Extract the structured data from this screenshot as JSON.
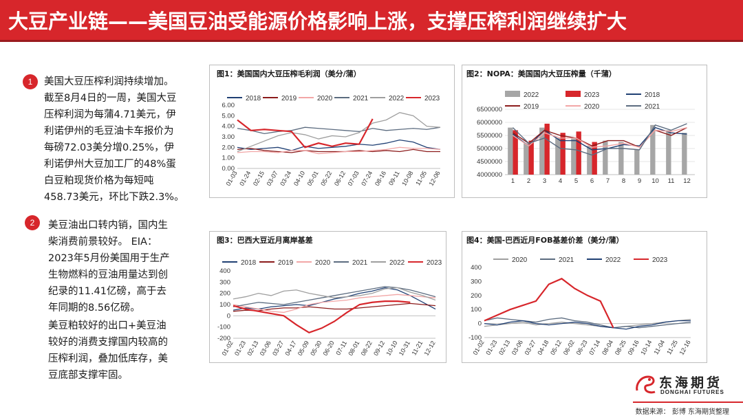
{
  "header": {
    "title": "大豆产业链——美国豆油受能源价格影响上涨，支撑压榨利润继续扩大"
  },
  "points": [
    {
      "number": "1",
      "lines": [
        "美国大豆压榨利润持续增加。",
        "截至8月4日的一周，美国大豆",
        "压榨利润为每蒲4.71美元，伊",
        "利诺伊州的毛豆油卡车报价为",
        "每磅72.03美分增0.25%，伊",
        "利诺伊州大豆加工厂的48%蛋",
        "白豆粕现货价格为每短吨",
        "458.73美元，环比下跌2.3%。"
      ]
    },
    {
      "number": "2",
      "lines": [
        "美豆油出口转内销，国内生",
        "柴消费前景较好。 EIA：",
        "2023年5月份美国用于生产",
        "生物燃料的豆油用量达到创",
        "纪录的11.41亿磅，高于去",
        "年同期的8.56亿磅。"
      ]
    },
    {
      "number": "",
      "lines": [
        "美豆粕较好的出口+美豆油",
        "较好的消费支撑国内较高的",
        "压榨利润，叠加低库存，美",
        "豆底部支撑牢固。"
      ]
    }
  ],
  "logo": {
    "cn": "东海期货",
    "en": "DONGHAI FUTURES"
  },
  "footer": {
    "source": "数据来源： 彭博 东海期货整理"
  },
  "chart_data": [
    {
      "type": "line",
      "title": "图1：美国国内大豆压榨毛利润（美分/蒲）",
      "x": [
        "01-03",
        "01-24",
        "02-15",
        "03-07",
        "03-24",
        "04-10",
        "05-01",
        "05-22",
        "06-12",
        "07-03",
        "07-24",
        "08-16",
        "09-11",
        "10-08",
        "11-05",
        "12-06"
      ],
      "ylim": [
        0,
        6
      ],
      "yticks": [
        "0.00",
        "1.00",
        "2.00",
        "3.00",
        "4.00",
        "5.00",
        "6.00"
      ],
      "legend_position": "top",
      "series": [
        {
          "name": "2018",
          "color": "#1f3f73",
          "values": [
            2.0,
            1.8,
            1.9,
            2.0,
            1.7,
            2.1,
            1.9,
            2.0,
            2.1,
            2.3,
            2.2,
            2.4,
            2.7,
            2.5,
            2.0,
            1.8
          ]
        },
        {
          "name": "2019",
          "color": "#8b1a1a",
          "values": [
            1.8,
            1.9,
            1.7,
            1.6,
            1.5,
            1.7,
            1.6,
            1.6,
            1.6,
            1.7,
            1.6,
            1.7,
            1.6,
            1.8,
            1.6,
            1.6
          ]
        },
        {
          "name": "2020",
          "color": "#f2a6a6",
          "values": [
            1.5,
            1.6,
            1.6,
            1.5,
            1.7,
            1.7,
            1.4,
            1.5,
            1.6,
            1.6,
            1.7,
            1.8,
            2.0,
            1.9,
            1.9,
            1.8
          ]
        },
        {
          "name": "2021",
          "color": "#5b6b7f",
          "values": [
            3.8,
            3.6,
            3.3,
            3.5,
            3.6,
            3.9,
            3.8,
            3.7,
            3.6,
            3.5,
            3.8,
            3.6,
            3.7,
            3.8,
            3.7,
            3.9
          ]
        },
        {
          "name": "2022",
          "color": "#9e9e9e",
          "values": [
            1.6,
            2.1,
            2.6,
            3.1,
            3.4,
            3.2,
            2.8,
            3.1,
            3.0,
            3.4,
            4.3,
            4.6,
            5.3,
            5.0,
            4.0,
            3.9
          ]
        },
        {
          "name": "2023",
          "color": "#d7262b",
          "values": [
            4.6,
            3.6,
            3.7,
            3.6,
            3.5,
            2.0,
            2.4,
            2.1,
            2.4,
            2.3,
            4.7,
            null,
            null,
            null,
            null,
            null
          ]
        }
      ]
    },
    {
      "type": "bar",
      "title": "图2：NOPA：美国国内大豆压榨量（千蒲）",
      "categories": [
        "1",
        "2",
        "3",
        "4",
        "5",
        "6",
        "7",
        "8",
        "9",
        "10",
        "11",
        "12"
      ],
      "ylim": [
        4000000,
        6500000
      ],
      "yticks": [
        "4000000",
        "4500000",
        "5000000",
        "5500000",
        "6000000",
        "6500000"
      ],
      "legend_position": "top",
      "series": [
        {
          "name": "2022",
          "type": "bar",
          "color": "#a6a6a6",
          "values": [
            5800000,
            5200000,
            5800000,
            5400000,
            5400000,
            5100000,
            5300000,
            5250000,
            4950000,
            5900000,
            5700000,
            5600000
          ]
        },
        {
          "name": "2023",
          "type": "bar",
          "color": "#d7262b",
          "values": [
            5700000,
            5300000,
            5950000,
            5600000,
            5650000,
            5250000,
            null,
            null,
            null,
            null,
            null,
            null
          ]
        },
        {
          "name": "2018",
          "type": "line",
          "color": "#1f3f73",
          "values": [
            5550000,
            5100000,
            5700000,
            5300000,
            5300000,
            4950000,
            5000000,
            5150000,
            5100000,
            5800000,
            5600000,
            5550000
          ]
        },
        {
          "name": "2019",
          "type": "line",
          "color": "#8b1a1a",
          "values": [
            5600000,
            5200000,
            5700000,
            5500000,
            5400000,
            5100000,
            5300000,
            5300000,
            5050000,
            5700000,
            5500000,
            5800000
          ]
        },
        {
          "name": "2020",
          "type": "line",
          "color": "#f2a6a6",
          "values": [
            5500000,
            5100000,
            5600000,
            5400000,
            5400000,
            5050000,
            5100000,
            5200000,
            5050000,
            5700000,
            5650000,
            5800000
          ]
        },
        {
          "name": "2021",
          "type": "line",
          "color": "#5b6b7f",
          "values": [
            5800000,
            5200000,
            5400000,
            5000000,
            4950000,
            4750000,
            5000000,
            5000000,
            4950000,
            5900000,
            5700000,
            5950000
          ]
        }
      ]
    },
    {
      "type": "line",
      "title": "图3：巴西大豆近月离岸基差",
      "x": [
        "01-02",
        "01-23",
        "02-13",
        "03-06",
        "03-27",
        "04-17",
        "05-09",
        "05-30",
        "06-20",
        "07-11",
        "08-01",
        "08-22",
        "09-12",
        "10-10",
        "10-31",
        "11-21",
        "12-12"
      ],
      "ylim": [
        -200,
        400
      ],
      "yticks": [
        "-200",
        "-100",
        "0",
        "100",
        "200",
        "300",
        "400"
      ],
      "legend_position": "top",
      "series": [
        {
          "name": "2018",
          "color": "#1f3f73",
          "values": [
            50,
            70,
            60,
            80,
            90,
            100,
            90,
            120,
            150,
            170,
            200,
            220,
            250,
            230,
            180,
            120,
            60
          ]
        },
        {
          "name": "2019",
          "color": "#8b1a1a",
          "values": [
            40,
            50,
            45,
            60,
            70,
            70,
            80,
            70,
            60,
            60,
            70,
            80,
            90,
            100,
            110,
            100,
            90
          ]
        },
        {
          "name": "2020",
          "color": "#f2a6a6",
          "values": [
            100,
            80,
            60,
            40,
            30,
            60,
            100,
            120,
            130,
            140,
            160,
            170,
            180,
            190,
            180,
            170,
            160
          ]
        },
        {
          "name": "2021",
          "color": "#5b6b7f",
          "values": [
            80,
            100,
            120,
            110,
            100,
            120,
            140,
            160,
            180,
            200,
            220,
            240,
            260,
            250,
            230,
            200,
            170
          ]
        },
        {
          "name": "2022",
          "color": "#9e9e9e",
          "values": [
            150,
            170,
            200,
            180,
            220,
            230,
            200,
            180,
            160,
            170,
            180,
            200,
            240,
            250,
            210,
            180,
            140
          ]
        },
        {
          "name": "2023",
          "color": "#d7262b",
          "values": [
            90,
            60,
            40,
            20,
            0,
            -80,
            -150,
            -110,
            -50,
            30,
            100,
            120,
            130,
            130,
            120,
            null,
            null
          ]
        }
      ]
    },
    {
      "type": "line",
      "title": "图4：美国-巴西近月FOB基差价差（美分/蒲）",
      "x": [
        "01-02",
        "01-23",
        "02-13",
        "03-06",
        "03-27",
        "04-18",
        "05-12",
        "06-02",
        "06-23",
        "07-14",
        "08-04",
        "08-25",
        "09-16",
        "10-14",
        "11-04",
        "11-25",
        "12-16"
      ],
      "ylim": [
        -100,
        400
      ],
      "yticks": [
        "-100",
        "0",
        "100",
        "200",
        "300",
        "400"
      ],
      "legend_position": "top",
      "series": [
        {
          "name": "2020",
          "color": "#9e9e9e",
          "values": [
            -20,
            -10,
            0,
            10,
            -10,
            0,
            10,
            0,
            -10,
            -20,
            -30,
            -20,
            -10,
            0,
            10,
            20,
            30
          ]
        },
        {
          "name": "2021",
          "color": "#5b6b7f",
          "values": [
            20,
            40,
            30,
            20,
            10,
            30,
            40,
            20,
            10,
            -10,
            -30,
            -20,
            -30,
            -20,
            -10,
            0,
            10
          ]
        },
        {
          "name": "2022",
          "color": "#1f3f73",
          "values": [
            0,
            -10,
            10,
            20,
            0,
            -10,
            0,
            10,
            0,
            -20,
            -30,
            -40,
            -20,
            -10,
            10,
            20,
            20
          ]
        },
        {
          "name": "2023",
          "color": "#d7262b",
          "values": [
            20,
            60,
            100,
            130,
            160,
            280,
            320,
            250,
            200,
            160,
            -30,
            null,
            null,
            null,
            null,
            null,
            null
          ]
        }
      ]
    }
  ]
}
